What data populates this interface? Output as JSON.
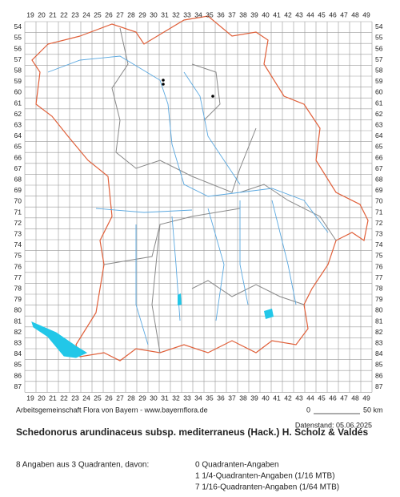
{
  "map": {
    "columns": [
      19,
      20,
      21,
      22,
      23,
      24,
      25,
      26,
      27,
      28,
      29,
      30,
      31,
      32,
      33,
      34,
      35,
      36,
      37,
      38,
      39,
      40,
      41,
      42,
      43,
      44,
      45,
      46,
      47,
      48,
      49
    ],
    "rows": [
      54,
      55,
      56,
      57,
      58,
      59,
      60,
      61,
      62,
      63,
      64,
      65,
      66,
      67,
      68,
      69,
      70,
      71,
      72,
      73,
      74,
      75,
      76,
      77,
      78,
      79,
      80,
      81,
      82,
      83,
      84,
      85,
      86,
      87
    ],
    "credit": "Arbeitsgemeinschaft Flora von Bayern - www.bayernflora.de",
    "scale_start": "0",
    "scale_end": "50 km",
    "date": "Datenstand: 05.06.2025",
    "title": "Schedonorus arundinaceus subsp. mediterraneus (Hack.) H. Scholz & Valdés",
    "summary": "8 Angaben aus 3 Quadranten, davon:",
    "counts": [
      "0 Quadranten-Angaben",
      "1 1/4-Quadranten-Angaben (1/16 MTB)",
      "7 1/16-Quadranten-Angaben (1/64 MTB)"
    ]
  }
}
